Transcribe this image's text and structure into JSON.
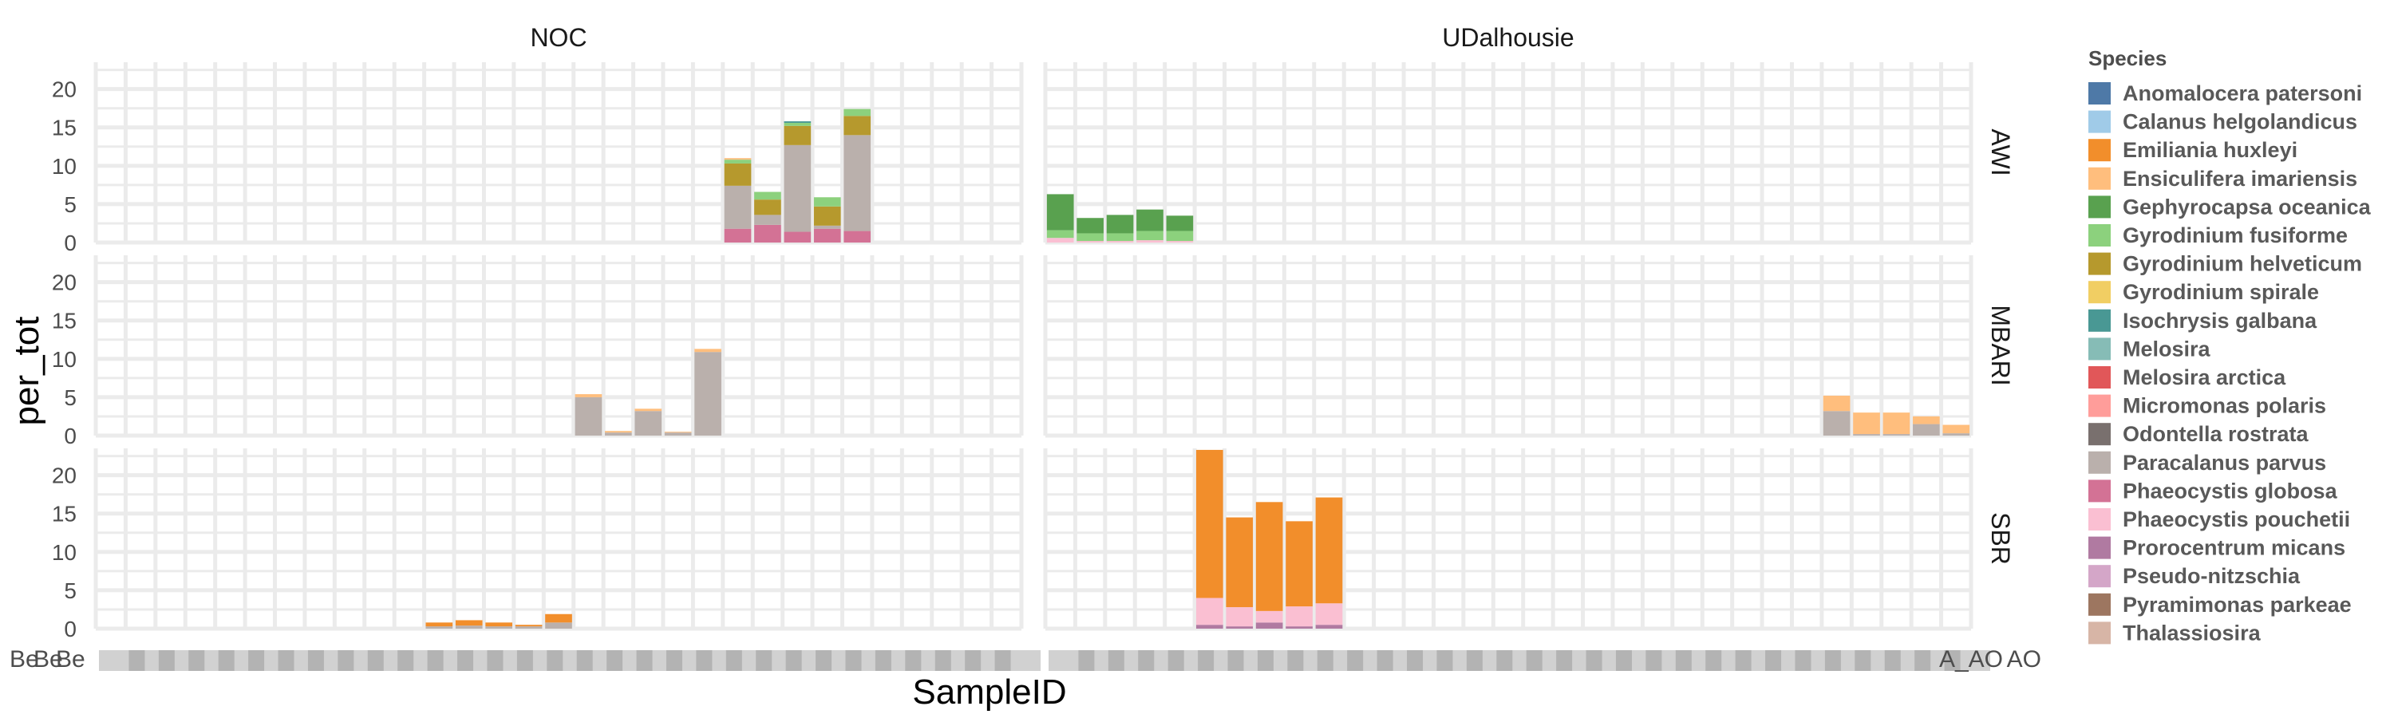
{
  "chart_data": {
    "type": "bar",
    "stacked": true,
    "faceted": true,
    "xlabel": "SampleID",
    "ylabel": "per_tot",
    "ylim": [
      0,
      23.5
    ],
    "yticks": [
      0,
      5,
      10,
      15,
      20
    ],
    "grid": true,
    "legend_title": "Species",
    "legend_position": "right",
    "col_facets": [
      "NOC",
      "UDalhousie"
    ],
    "row_facets": [
      "AWI",
      "MBARI",
      "SBR"
    ],
    "x_tick_labels_visible": [
      "Be",
      "Be",
      "Be",
      "A_AO",
      "AO"
    ],
    "species": [
      {
        "name": "Anomalocera patersoni",
        "color": "#4e79a7"
      },
      {
        "name": "Calanus helgolandicus",
        "color": "#a0cbe8"
      },
      {
        "name": "Emiliania huxleyi",
        "color": "#f28e2b"
      },
      {
        "name": "Ensiculifera imariensis",
        "color": "#ffbe7d"
      },
      {
        "name": "Gephyrocapsa oceanica",
        "color": "#59a14f"
      },
      {
        "name": "Gyrodinium fusiforme",
        "color": "#8cd17d"
      },
      {
        "name": "Gyrodinium helveticum",
        "color": "#b6992d"
      },
      {
        "name": "Gyrodinium spirale",
        "color": "#f1ce63"
      },
      {
        "name": "Isochrysis galbana",
        "color": "#499894"
      },
      {
        "name": "Melosira",
        "color": "#86bcb6"
      },
      {
        "name": "Melosira arctica",
        "color": "#e15759"
      },
      {
        "name": "Micromonas polaris",
        "color": "#ff9d9a"
      },
      {
        "name": "Odontella rostrata",
        "color": "#79706e"
      },
      {
        "name": "Paracalanus parvus",
        "color": "#bab0ac"
      },
      {
        "name": "Phaeocystis globosa",
        "color": "#d37295"
      },
      {
        "name": "Phaeocystis pouchetii",
        "color": "#fabfd2"
      },
      {
        "name": "Prorocentrum micans",
        "color": "#b07aa1"
      },
      {
        "name": "Pseudo-nitzschia",
        "color": "#d4a6c8"
      },
      {
        "name": "Pyramimonas parkeae",
        "color": "#9d7660"
      },
      {
        "name": "Thalassiosira",
        "color": "#d7b5a6"
      }
    ],
    "panels": [
      {
        "row": "AWI",
        "col": "NOC",
        "bars": [
          {
            "x": 21,
            "segments": [
              {
                "species": "Phaeocystis globosa",
                "value": 1.8
              },
              {
                "species": "Paracalanus parvus",
                "value": 5.6
              },
              {
                "species": "Gyrodinium helveticum",
                "value": 2.9
              },
              {
                "species": "Gyrodinium fusiforme",
                "value": 0.5
              },
              {
                "species": "Ensiculifera imariensis",
                "value": 0.2
              }
            ]
          },
          {
            "x": 22,
            "segments": [
              {
                "species": "Phaeocystis globosa",
                "value": 2.3
              },
              {
                "species": "Paracalanus parvus",
                "value": 1.3
              },
              {
                "species": "Gyrodinium helveticum",
                "value": 2.0
              },
              {
                "species": "Gyrodinium fusiforme",
                "value": 1.0
              }
            ]
          },
          {
            "x": 23,
            "segments": [
              {
                "species": "Phaeocystis globosa",
                "value": 1.4
              },
              {
                "species": "Paracalanus parvus",
                "value": 11.3
              },
              {
                "species": "Gyrodinium helveticum",
                "value": 2.5
              },
              {
                "species": "Gyrodinium fusiforme",
                "value": 0.4
              },
              {
                "species": "Isochrysis galbana",
                "value": 0.2
              }
            ]
          },
          {
            "x": 24,
            "segments": [
              {
                "species": "Phaeocystis globosa",
                "value": 1.8
              },
              {
                "species": "Paracalanus parvus",
                "value": 0.4
              },
              {
                "species": "Gyrodinium helveticum",
                "value": 2.5
              },
              {
                "species": "Gyrodinium fusiforme",
                "value": 1.2
              }
            ]
          },
          {
            "x": 25,
            "segments": [
              {
                "species": "Phaeocystis globosa",
                "value": 1.5
              },
              {
                "species": "Paracalanus parvus",
                "value": 12.5
              },
              {
                "species": "Gyrodinium helveticum",
                "value": 2.5
              },
              {
                "species": "Gyrodinium fusiforme",
                "value": 0.9
              }
            ]
          }
        ]
      },
      {
        "row": "AWI",
        "col": "UDalhousie",
        "bars": [
          {
            "x": 0,
            "segments": [
              {
                "species": "Phaeocystis pouchetii",
                "value": 0.6
              },
              {
                "species": "Gyrodinium fusiforme",
                "value": 1.0
              },
              {
                "species": "Gephyrocapsa oceanica",
                "value": 4.7
              }
            ]
          },
          {
            "x": 1,
            "segments": [
              {
                "species": "Phaeocystis pouchetii",
                "value": 0.2
              },
              {
                "species": "Gyrodinium fusiforme",
                "value": 1.0
              },
              {
                "species": "Gephyrocapsa oceanica",
                "value": 2.0
              }
            ]
          },
          {
            "x": 2,
            "segments": [
              {
                "species": "Phaeocystis pouchetii",
                "value": 0.2
              },
              {
                "species": "Gyrodinium fusiforme",
                "value": 1.0
              },
              {
                "species": "Gephyrocapsa oceanica",
                "value": 2.4
              }
            ]
          },
          {
            "x": 3,
            "segments": [
              {
                "species": "Phaeocystis pouchetii",
                "value": 0.3
              },
              {
                "species": "Gyrodinium fusiforme",
                "value": 1.2
              },
              {
                "species": "Gephyrocapsa oceanica",
                "value": 2.8
              }
            ]
          },
          {
            "x": 4,
            "segments": [
              {
                "species": "Phaeocystis pouchetii",
                "value": 0.2
              },
              {
                "species": "Gyrodinium fusiforme",
                "value": 1.3
              },
              {
                "species": "Gephyrocapsa oceanica",
                "value": 2.0
              }
            ]
          }
        ]
      },
      {
        "row": "MBARI",
        "col": "NOC",
        "bars": [
          {
            "x": 16,
            "segments": [
              {
                "species": "Paracalanus parvus",
                "value": 5.0
              },
              {
                "species": "Ensiculifera imariensis",
                "value": 0.4
              }
            ]
          },
          {
            "x": 17,
            "segments": [
              {
                "species": "Paracalanus parvus",
                "value": 0.4
              },
              {
                "species": "Ensiculifera imariensis",
                "value": 0.2
              }
            ]
          },
          {
            "x": 18,
            "segments": [
              {
                "species": "Paracalanus parvus",
                "value": 3.2
              },
              {
                "species": "Ensiculifera imariensis",
                "value": 0.3
              }
            ]
          },
          {
            "x": 19,
            "segments": [
              {
                "species": "Paracalanus parvus",
                "value": 0.4
              },
              {
                "species": "Ensiculifera imariensis",
                "value": 0.1
              }
            ]
          },
          {
            "x": 20,
            "segments": [
              {
                "species": "Paracalanus parvus",
                "value": 10.9
              },
              {
                "species": "Ensiculifera imariensis",
                "value": 0.4
              }
            ]
          }
        ]
      },
      {
        "row": "MBARI",
        "col": "UDalhousie",
        "bars": [
          {
            "x": 26,
            "segments": [
              {
                "species": "Paracalanus parvus",
                "value": 3.2
              },
              {
                "species": "Ensiculifera imariensis",
                "value": 2.0
              }
            ]
          },
          {
            "x": 27,
            "segments": [
              {
                "species": "Paracalanus parvus",
                "value": 0.2
              },
              {
                "species": "Ensiculifera imariensis",
                "value": 2.8
              }
            ]
          },
          {
            "x": 28,
            "segments": [
              {
                "species": "Paracalanus parvus",
                "value": 0.2
              },
              {
                "species": "Ensiculifera imariensis",
                "value": 2.8
              }
            ]
          },
          {
            "x": 29,
            "segments": [
              {
                "species": "Paracalanus parvus",
                "value": 1.5
              },
              {
                "species": "Ensiculifera imariensis",
                "value": 1.0
              }
            ]
          },
          {
            "x": 30,
            "segments": [
              {
                "species": "Paracalanus parvus",
                "value": 0.3
              },
              {
                "species": "Ensiculifera imariensis",
                "value": 1.1
              }
            ]
          }
        ]
      },
      {
        "row": "SBR",
        "col": "NOC",
        "bars": [
          {
            "x": 11,
            "segments": [
              {
                "species": "Paracalanus parvus",
                "value": 0.3
              },
              {
                "species": "Emiliania huxleyi",
                "value": 0.5
              }
            ]
          },
          {
            "x": 12,
            "segments": [
              {
                "species": "Paracalanus parvus",
                "value": 0.4
              },
              {
                "species": "Emiliania huxleyi",
                "value": 0.7
              }
            ]
          },
          {
            "x": 13,
            "segments": [
              {
                "species": "Paracalanus parvus",
                "value": 0.3
              },
              {
                "species": "Emiliania huxleyi",
                "value": 0.5
              }
            ]
          },
          {
            "x": 14,
            "segments": [
              {
                "species": "Paracalanus parvus",
                "value": 0.3
              },
              {
                "species": "Emiliania huxleyi",
                "value": 0.2
              }
            ]
          },
          {
            "x": 15,
            "segments": [
              {
                "species": "Paracalanus parvus",
                "value": 0.8
              },
              {
                "species": "Emiliania huxleyi",
                "value": 1.1
              }
            ]
          }
        ]
      },
      {
        "row": "SBR",
        "col": "UDalhousie",
        "bars": [
          {
            "x": 5,
            "segments": [
              {
                "species": "Prorocentrum micans",
                "value": 0.5
              },
              {
                "species": "Phaeocystis pouchetii",
                "value": 3.5
              },
              {
                "species": "Emiliania huxleyi",
                "value": 19.3
              }
            ]
          },
          {
            "x": 6,
            "segments": [
              {
                "species": "Prorocentrum micans",
                "value": 0.3
              },
              {
                "species": "Phaeocystis pouchetii",
                "value": 2.5
              },
              {
                "species": "Emiliania huxleyi",
                "value": 11.7
              }
            ]
          },
          {
            "x": 7,
            "segments": [
              {
                "species": "Prorocentrum micans",
                "value": 0.8
              },
              {
                "species": "Phaeocystis pouchetii",
                "value": 1.5
              },
              {
                "species": "Emiliania huxleyi",
                "value": 14.2
              }
            ]
          },
          {
            "x": 8,
            "segments": [
              {
                "species": "Prorocentrum micans",
                "value": 0.3
              },
              {
                "species": "Phaeocystis pouchetii",
                "value": 2.6
              },
              {
                "species": "Emiliania huxleyi",
                "value": 11.1
              }
            ]
          },
          {
            "x": 9,
            "segments": [
              {
                "species": "Prorocentrum micans",
                "value": 0.5
              },
              {
                "species": "Phaeocystis pouchetii",
                "value": 2.8
              },
              {
                "species": "Emiliania huxleyi",
                "value": 13.8
              }
            ]
          }
        ]
      }
    ]
  }
}
